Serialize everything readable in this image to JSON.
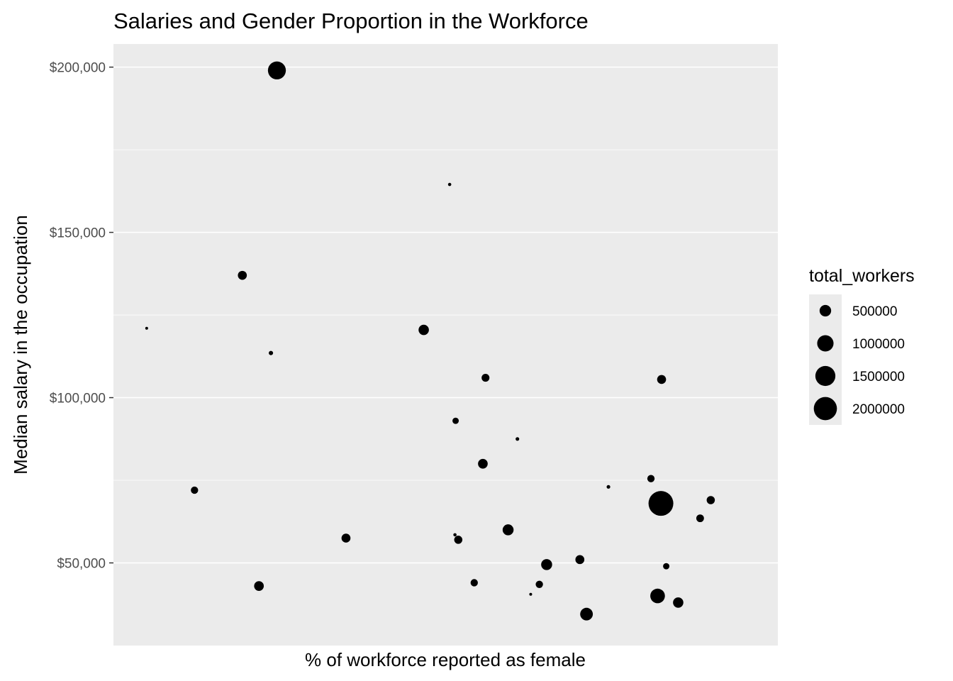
{
  "chart_data": {
    "type": "scatter",
    "title": "Salaries and Gender Proportion in the Workforce",
    "xlabel": "% of workforce reported as female",
    "ylabel": "Median salary in the occupation",
    "ylim": [
      25000,
      207000
    ],
    "yticks": [
      {
        "value": 50000,
        "label": "$50,000"
      },
      {
        "value": 100000,
        "label": "$100,000"
      },
      {
        "value": 150000,
        "label": "$150,000"
      },
      {
        "value": 200000,
        "label": "$200,000"
      }
    ],
    "yminor": [
      75000,
      125000,
      175000
    ],
    "size_legend": {
      "title": "total_workers",
      "entries": [
        {
          "value": 500000,
          "label": "500000"
        },
        {
          "value": 1000000,
          "label": "1000000"
        },
        {
          "value": 1500000,
          "label": "1500000"
        },
        {
          "value": 2000000,
          "label": "2000000"
        }
      ]
    },
    "colors": {
      "panel": "#ebebeb",
      "grid": "#ffffff",
      "point": "#000000"
    },
    "points": [
      {
        "x": 0.05,
        "y": 121000,
        "size": 30000
      },
      {
        "x": 0.122,
        "y": 72000,
        "size": 200000
      },
      {
        "x": 0.194,
        "y": 137000,
        "size": 300000
      },
      {
        "x": 0.219,
        "y": 43000,
        "size": 350000
      },
      {
        "x": 0.237,
        "y": 113500,
        "size": 70000
      },
      {
        "x": 0.246,
        "y": 199000,
        "size": 1200000
      },
      {
        "x": 0.35,
        "y": 57500,
        "size": 300000
      },
      {
        "x": 0.467,
        "y": 120500,
        "size": 400000
      },
      {
        "x": 0.506,
        "y": 164500,
        "size": 40000
      },
      {
        "x": 0.514,
        "y": 58500,
        "size": 40000
      },
      {
        "x": 0.515,
        "y": 93000,
        "size": 150000
      },
      {
        "x": 0.519,
        "y": 57000,
        "size": 250000
      },
      {
        "x": 0.543,
        "y": 44000,
        "size": 200000
      },
      {
        "x": 0.556,
        "y": 80000,
        "size": 350000
      },
      {
        "x": 0.56,
        "y": 106000,
        "size": 230000
      },
      {
        "x": 0.594,
        "y": 60000,
        "size": 450000
      },
      {
        "x": 0.608,
        "y": 87500,
        "size": 50000
      },
      {
        "x": 0.628,
        "y": 40500,
        "size": 30000
      },
      {
        "x": 0.641,
        "y": 43500,
        "size": 200000
      },
      {
        "x": 0.652,
        "y": 49500,
        "size": 450000
      },
      {
        "x": 0.702,
        "y": 51000,
        "size": 300000
      },
      {
        "x": 0.712,
        "y": 34500,
        "size": 600000
      },
      {
        "x": 0.745,
        "y": 73000,
        "size": 50000
      },
      {
        "x": 0.809,
        "y": 75500,
        "size": 200000
      },
      {
        "x": 0.819,
        "y": 40000,
        "size": 800000
      },
      {
        "x": 0.824,
        "y": 68000,
        "size": 2300000
      },
      {
        "x": 0.825,
        "y": 105500,
        "size": 300000
      },
      {
        "x": 0.832,
        "y": 49000,
        "size": 150000
      },
      {
        "x": 0.85,
        "y": 38000,
        "size": 400000
      },
      {
        "x": 0.883,
        "y": 63500,
        "size": 220000
      },
      {
        "x": 0.899,
        "y": 69000,
        "size": 250000
      }
    ]
  }
}
